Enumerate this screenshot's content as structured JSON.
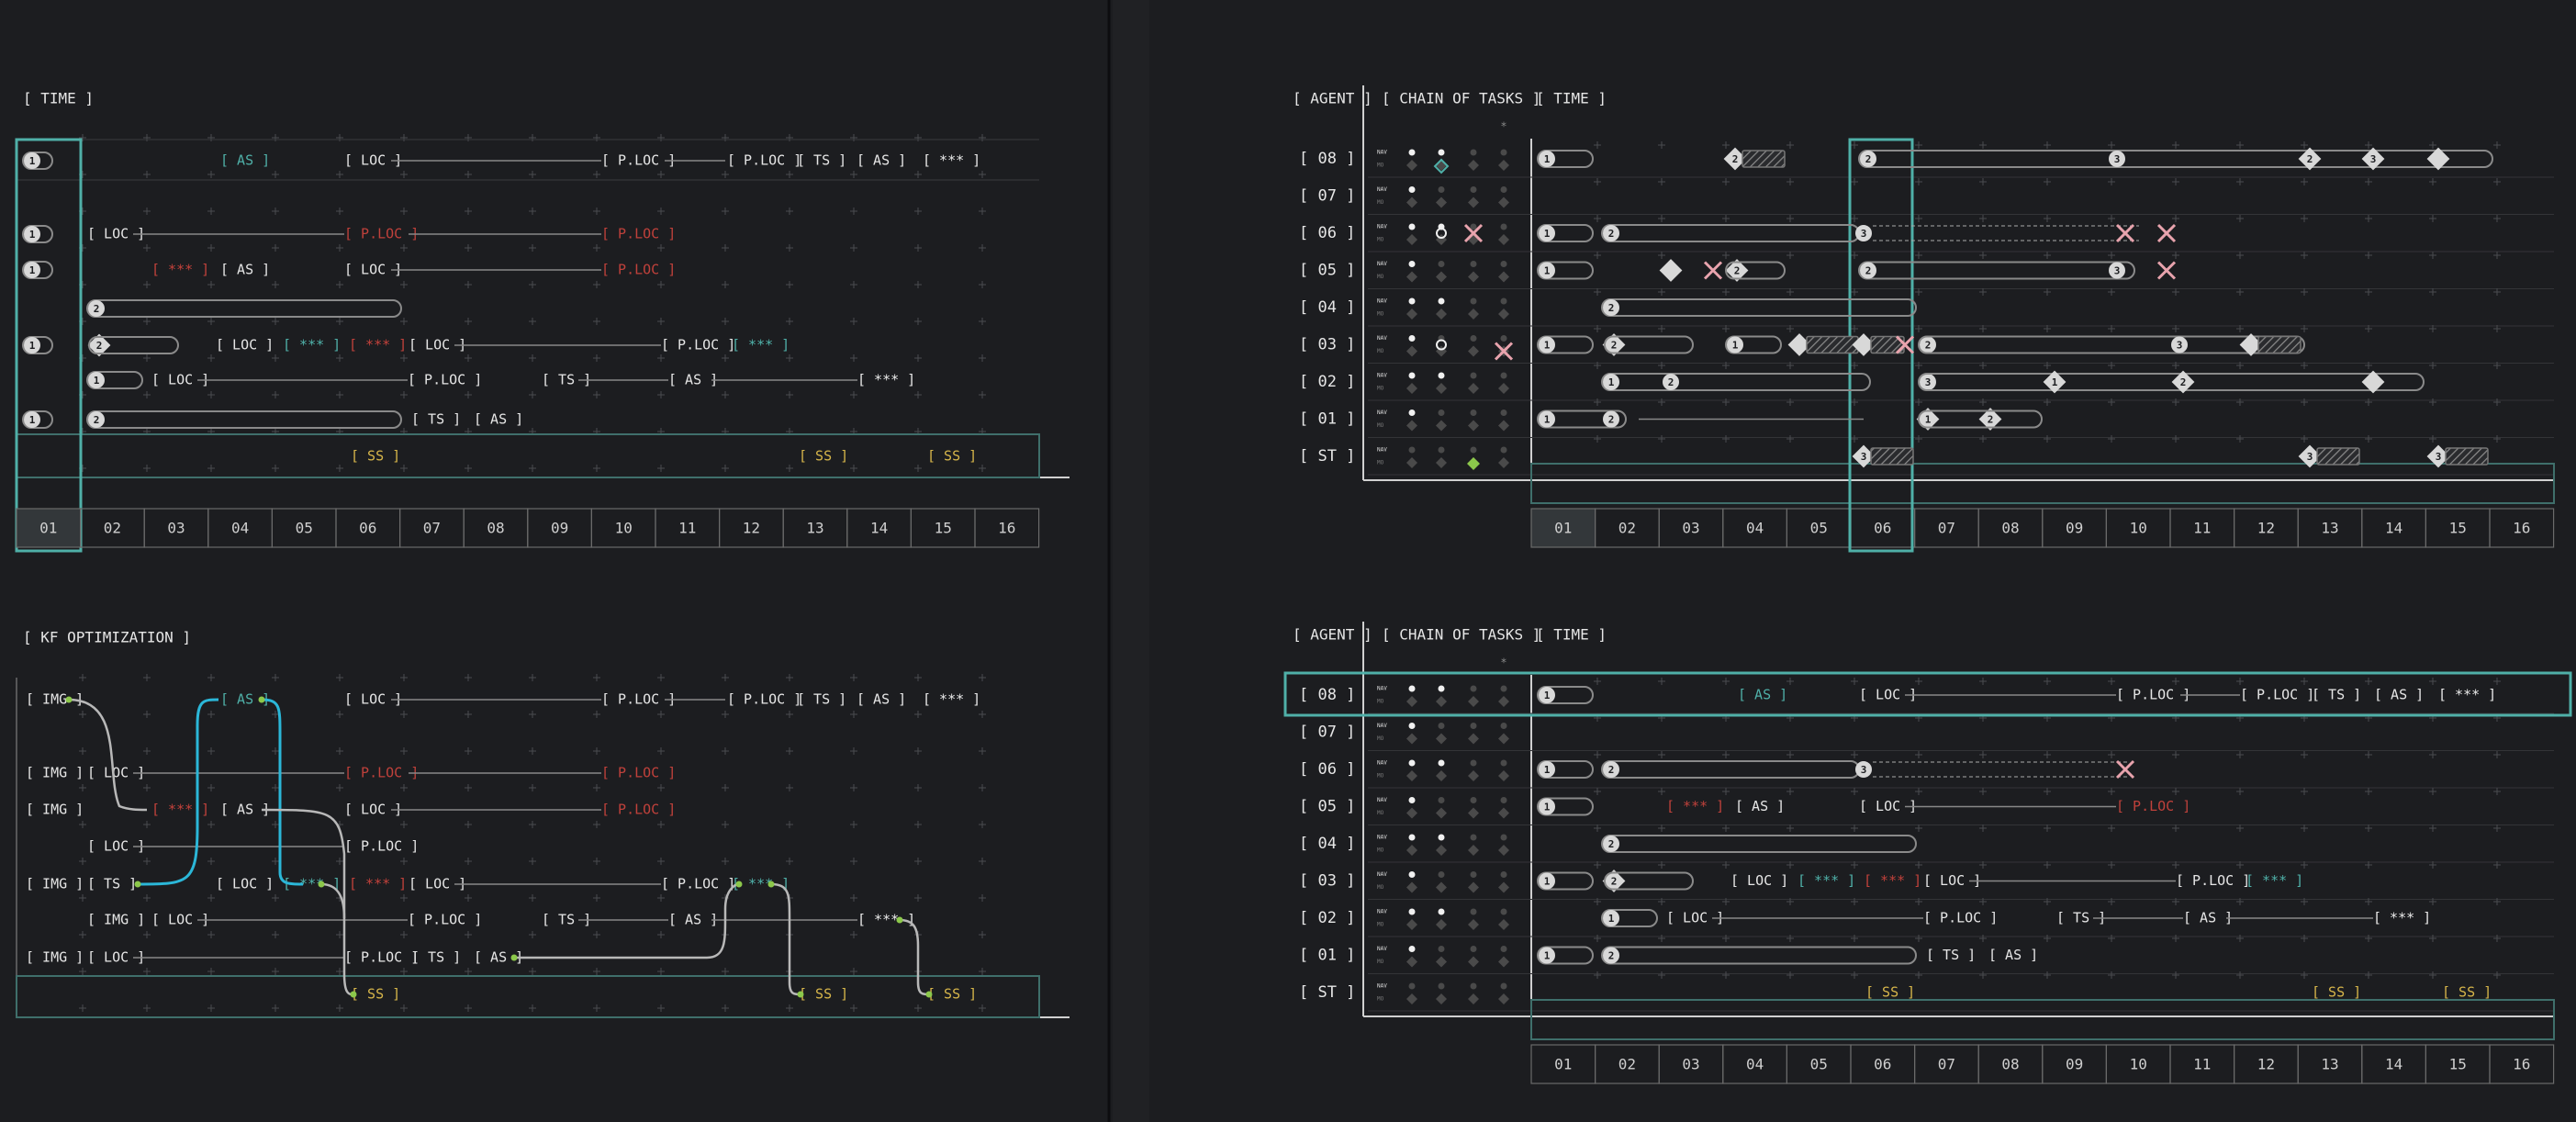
{
  "colors": {
    "bg": "#1c1d20",
    "teal": "#4fb0a8",
    "red": "#c0413b",
    "yellow": "#d6b54a",
    "green": "#8cc84b",
    "cyan": "#2bb7d8",
    "pink": "#e8a3ad",
    "text": "#e6e6e6",
    "grey": "#808080"
  },
  "labels": {
    "time": "[ TIME ]",
    "agent": "[ AGENT ]",
    "chain": "[ CHAIN OF TASKS ]",
    "kf": "[ KF OPTIMIZATION ]",
    "nav": "NAV",
    "mo": "MO",
    "star": "*"
  },
  "timeline": [
    "01",
    "02",
    "03",
    "04",
    "05",
    "06",
    "07",
    "08",
    "09",
    "10",
    "11",
    "12",
    "13",
    "14",
    "15",
    "16"
  ],
  "agents": [
    "[ 08 ]",
    "[ 07 ]",
    "[ 06 ]",
    "[ 05 ]",
    "[ 04 ]",
    "[ 03 ]",
    "[ 02 ]",
    "[ 01 ]",
    "[ ST ]"
  ],
  "tokens": {
    "loc": "[ LOC ]",
    "ploc": "[ P.LOC ]",
    "as": "[ AS ]",
    "ts": "[ TS ]",
    "ss": "[ SS ]",
    "stars": "[ *** ]",
    "img": "[ IMG ]"
  },
  "steps": {
    "one": "1",
    "two": "2",
    "three": "3"
  }
}
